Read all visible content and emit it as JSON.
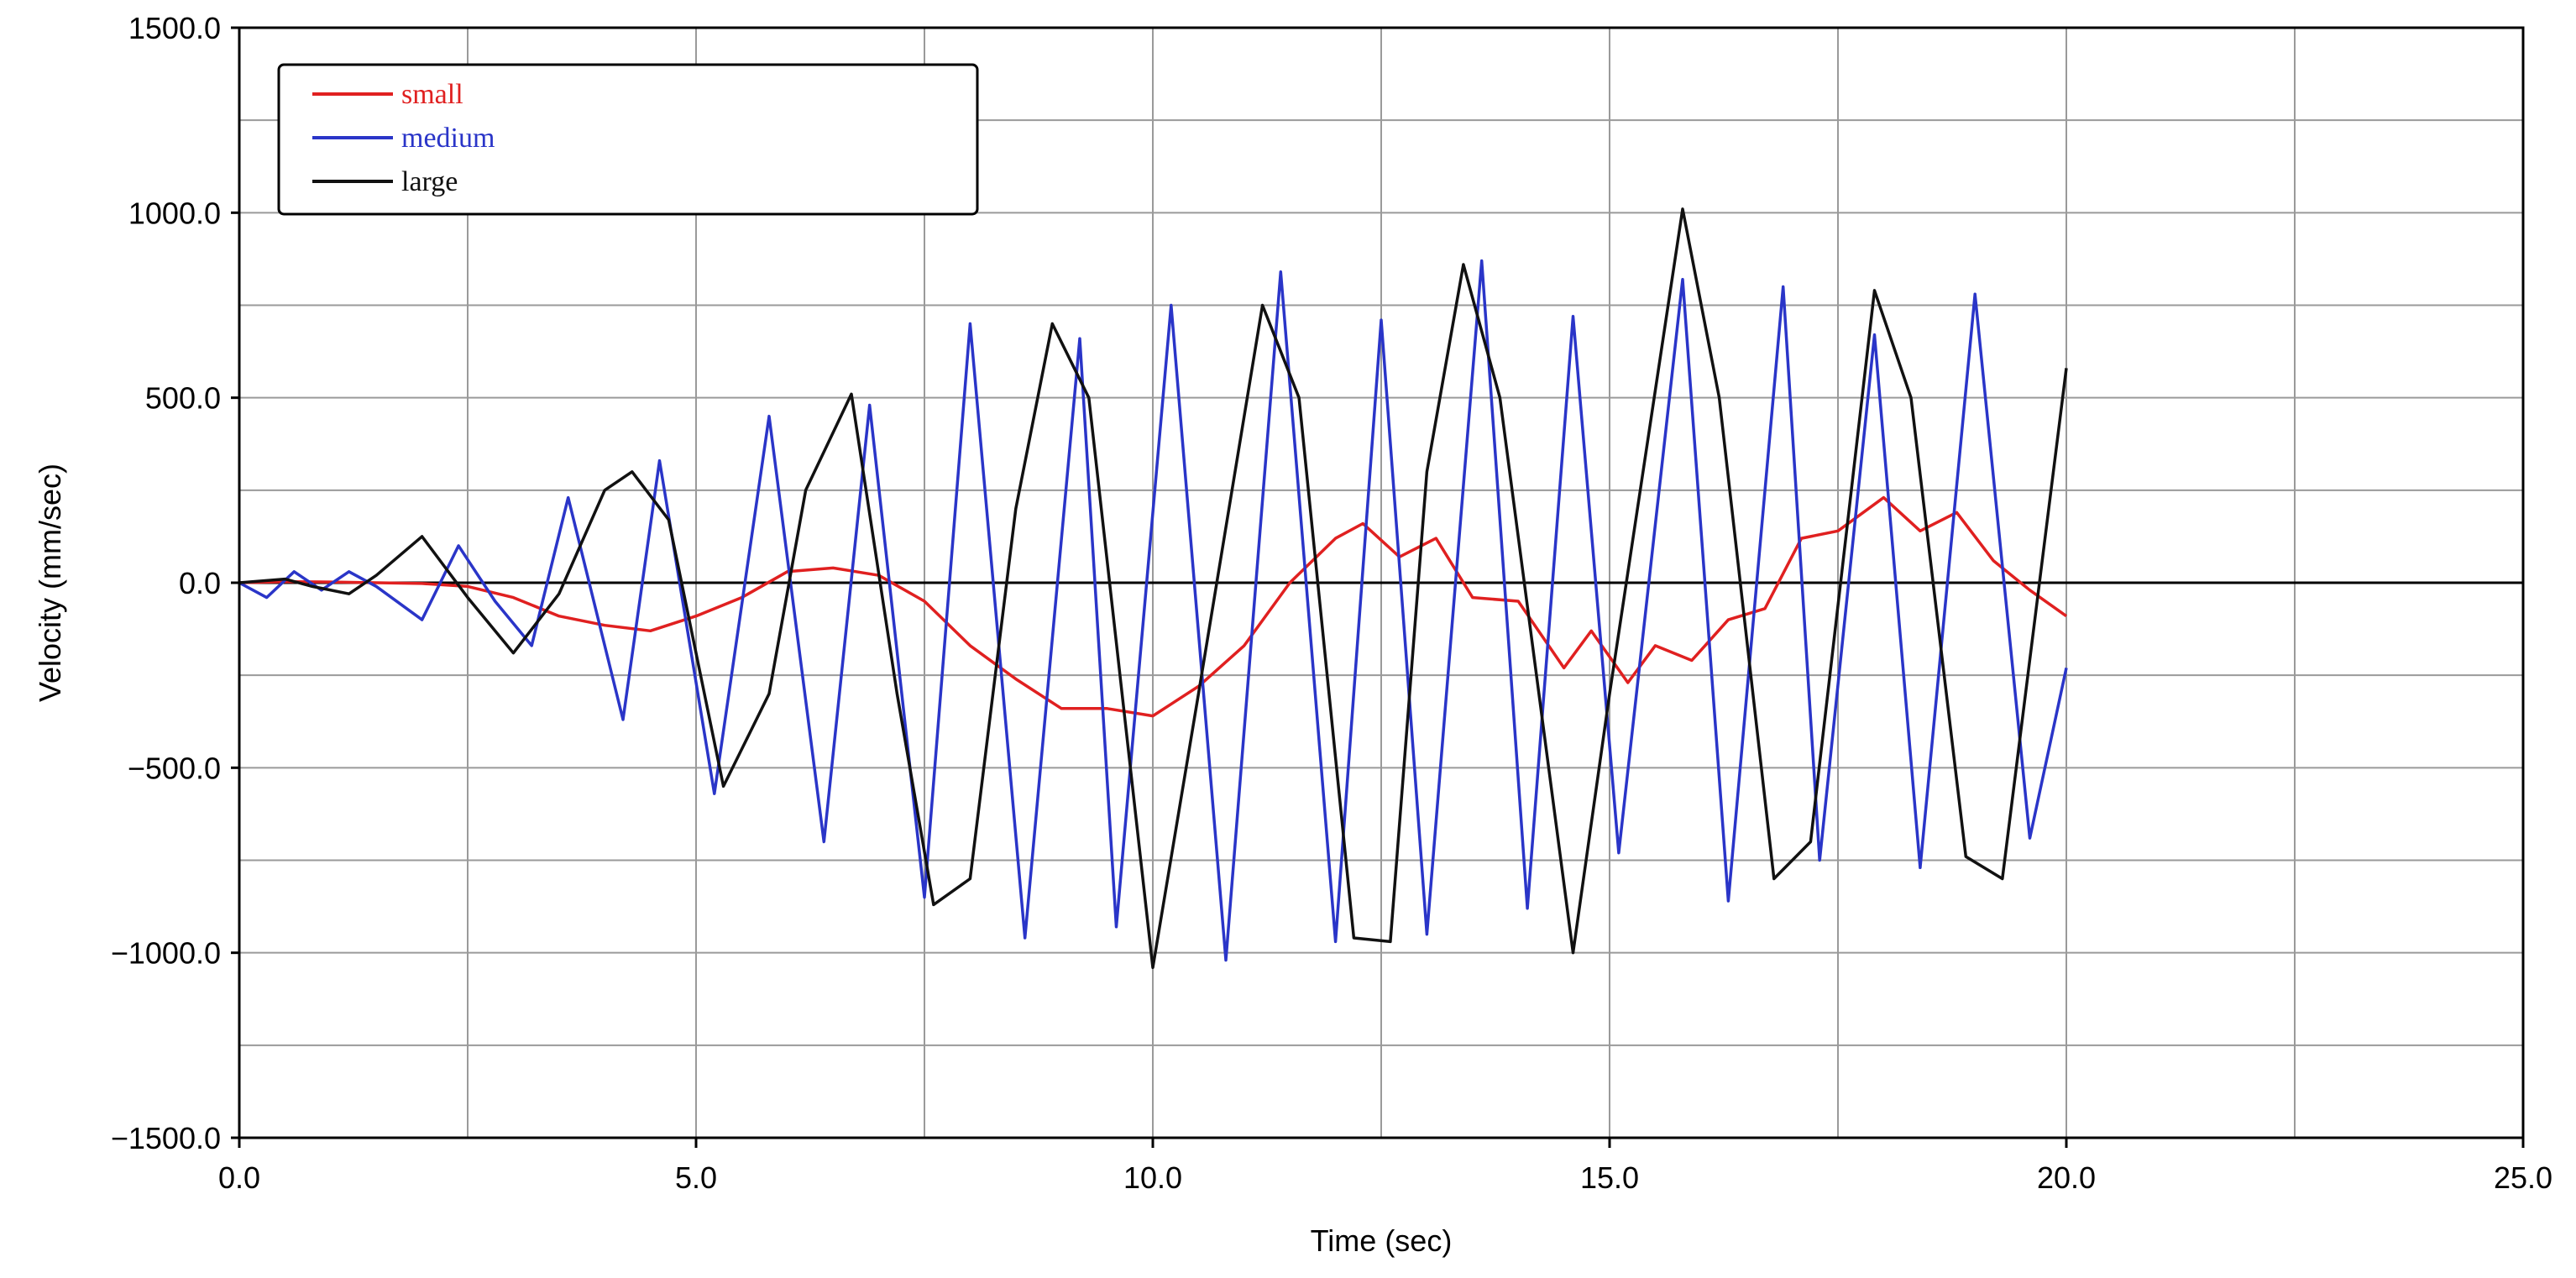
{
  "chart_data": {
    "type": "line",
    "title": "",
    "xlabel": "Time (sec)",
    "ylabel": "Velocity (mm/sec)",
    "xlim": [
      0,
      25
    ],
    "ylim": [
      -1500,
      1500
    ],
    "x_ticks": [
      0,
      5,
      10,
      15,
      20,
      25
    ],
    "x_tick_labels": [
      "0.0",
      "5.0",
      "10.0",
      "15.0",
      "20.0",
      "25.0"
    ],
    "y_ticks": [
      -1500,
      -1000,
      -500,
      0,
      500,
      1000,
      1500
    ],
    "y_tick_labels": [
      "−1500.0",
      "−1000.0",
      "−500.0",
      "0.0",
      "500.0",
      "1000.0",
      "1500.0"
    ],
    "grid": true,
    "legend_position": "top-left",
    "series": [
      {
        "name": "small",
        "color": "#e02020",
        "points": [
          [
            0,
            0
          ],
          [
            0.5,
            3
          ],
          [
            1,
            2
          ],
          [
            1.5,
            0
          ],
          [
            2,
            -2
          ],
          [
            2.5,
            -10
          ],
          [
            3,
            -40
          ],
          [
            3.5,
            -90
          ],
          [
            4,
            -115
          ],
          [
            4.5,
            -130
          ],
          [
            5,
            -90
          ],
          [
            5.5,
            -40
          ],
          [
            6,
            30
          ],
          [
            6.5,
            40
          ],
          [
            7,
            20
          ],
          [
            7.5,
            -50
          ],
          [
            8,
            -170
          ],
          [
            8.5,
            -260
          ],
          [
            9,
            -340
          ],
          [
            9.5,
            -340
          ],
          [
            10,
            -360
          ],
          [
            10.5,
            -280
          ],
          [
            11,
            -170
          ],
          [
            11.5,
            0
          ],
          [
            12,
            120
          ],
          [
            12.3,
            160
          ],
          [
            12.7,
            70
          ],
          [
            13.1,
            120
          ],
          [
            13.5,
            -40
          ],
          [
            14,
            -50
          ],
          [
            14.5,
            -230
          ],
          [
            14.8,
            -130
          ],
          [
            15.2,
            -270
          ],
          [
            15.5,
            -170
          ],
          [
            15.9,
            -210
          ],
          [
            16.3,
            -100
          ],
          [
            16.7,
            -70
          ],
          [
            17.1,
            120
          ],
          [
            17.5,
            140
          ],
          [
            18,
            230
          ],
          [
            18.4,
            140
          ],
          [
            18.8,
            190
          ],
          [
            19.2,
            60
          ],
          [
            19.6,
            -20
          ],
          [
            20,
            -90
          ]
        ]
      },
      {
        "name": "medium",
        "color": "#2a35c8",
        "points": [
          [
            0,
            0
          ],
          [
            0.3,
            -40
          ],
          [
            0.6,
            30
          ],
          [
            0.9,
            -20
          ],
          [
            1.2,
            30
          ],
          [
            1.5,
            -10
          ],
          [
            2,
            -100
          ],
          [
            2.4,
            100
          ],
          [
            2.8,
            -50
          ],
          [
            3.2,
            -170
          ],
          [
            3.6,
            230
          ],
          [
            4.2,
            -370
          ],
          [
            4.6,
            330
          ],
          [
            5.2,
            -570
          ],
          [
            5.8,
            450
          ],
          [
            6.4,
            -700
          ],
          [
            6.9,
            480
          ],
          [
            7.5,
            -850
          ],
          [
            8,
            700
          ],
          [
            8.6,
            -960
          ],
          [
            9.2,
            660
          ],
          [
            9.6,
            -930
          ],
          [
            10.2,
            750
          ],
          [
            10.8,
            -1020
          ],
          [
            11.4,
            840
          ],
          [
            12,
            -970
          ],
          [
            12.5,
            710
          ],
          [
            13,
            -950
          ],
          [
            13.6,
            870
          ],
          [
            14.1,
            -880
          ],
          [
            14.6,
            720
          ],
          [
            15.1,
            -730
          ],
          [
            15.8,
            820
          ],
          [
            16.3,
            -860
          ],
          [
            16.9,
            800
          ],
          [
            17.3,
            -750
          ],
          [
            17.9,
            670
          ],
          [
            18.4,
            -770
          ],
          [
            19,
            780
          ],
          [
            19.6,
            -690
          ],
          [
            20,
            -230
          ]
        ]
      },
      {
        "name": "large",
        "color": "#111111",
        "points": [
          [
            0,
            0
          ],
          [
            0.5,
            10
          ],
          [
            0.8,
            -10
          ],
          [
            1.2,
            -30
          ],
          [
            1.5,
            20
          ],
          [
            2,
            125
          ],
          [
            2.5,
            -40
          ],
          [
            3,
            -190
          ],
          [
            3.5,
            -30
          ],
          [
            4,
            250
          ],
          [
            4.3,
            300
          ],
          [
            4.7,
            170
          ],
          [
            5.3,
            -550
          ],
          [
            5.8,
            -300
          ],
          [
            6.2,
            250
          ],
          [
            6.7,
            510
          ],
          [
            7.2,
            -300
          ],
          [
            7.6,
            -870
          ],
          [
            8,
            -800
          ],
          [
            8.5,
            200
          ],
          [
            8.9,
            700
          ],
          [
            9.3,
            500
          ],
          [
            10,
            -1040
          ],
          [
            10.5,
            -300
          ],
          [
            11.2,
            750
          ],
          [
            11.6,
            500
          ],
          [
            12.2,
            -960
          ],
          [
            12.6,
            -970
          ],
          [
            13,
            300
          ],
          [
            13.4,
            860
          ],
          [
            13.8,
            500
          ],
          [
            14.6,
            -1000
          ],
          [
            15,
            -300
          ],
          [
            15.8,
            1010
          ],
          [
            16.2,
            500
          ],
          [
            16.8,
            -800
          ],
          [
            17.2,
            -700
          ],
          [
            17.9,
            790
          ],
          [
            18.3,
            500
          ],
          [
            18.9,
            -740
          ],
          [
            19.3,
            -800
          ],
          [
            20,
            580
          ]
        ]
      }
    ]
  }
}
